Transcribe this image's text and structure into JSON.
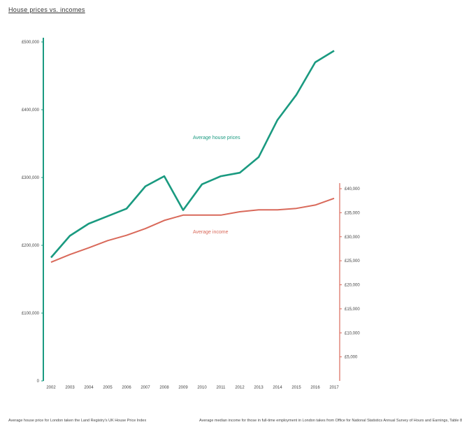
{
  "title": "House prices vs. incomes",
  "colors": {
    "house": "#1a9a80",
    "income": "#d9695a",
    "axis_left": "#1a9a80",
    "axis_right": "#d9695a"
  },
  "chart_data": {
    "type": "line",
    "x": [
      "2002",
      "2003",
      "2004",
      "2005",
      "2006",
      "2007",
      "2008",
      "2009",
      "2010",
      "2011",
      "2012",
      "2013",
      "2014",
      "2015",
      "2016",
      "2017"
    ],
    "series": [
      {
        "name": "Average house prices",
        "axis": "left",
        "values": [
          182000,
          214000,
          232000,
          243000,
          254000,
          287000,
          302000,
          252000,
          290000,
          302000,
          307000,
          330000,
          385000,
          422000,
          470000,
          487000
        ]
      },
      {
        "name": "Average income",
        "axis": "right",
        "values": [
          24700,
          26300,
          27700,
          29200,
          30300,
          31700,
          33400,
          34500,
          34500,
          34500,
          35200,
          35600,
          35600,
          35900,
          36600,
          38000
        ]
      }
    ],
    "left_axis": {
      "ylim": [
        0,
        500000
      ],
      "ticks": [
        "0",
        "£100,000",
        "£200,000",
        "£300,000",
        "£400,000",
        "£500,000"
      ]
    },
    "right_axis": {
      "ylim": [
        0,
        40000
      ],
      "ticks": [
        "£5,000",
        "£10,000",
        "£15,000",
        "£20,000",
        "£25,000",
        "£30,000",
        "£35,000",
        "£40,000"
      ]
    },
    "grid": false,
    "legend": "inline labels"
  },
  "notes": {
    "left": "Average house price for London taken the Land Registry's UK House Price Index",
    "right": "Average median income for those in full-time employment in London takes from Office for National Statistics Annual Survey of Hours and Earnings, Table 8"
  }
}
